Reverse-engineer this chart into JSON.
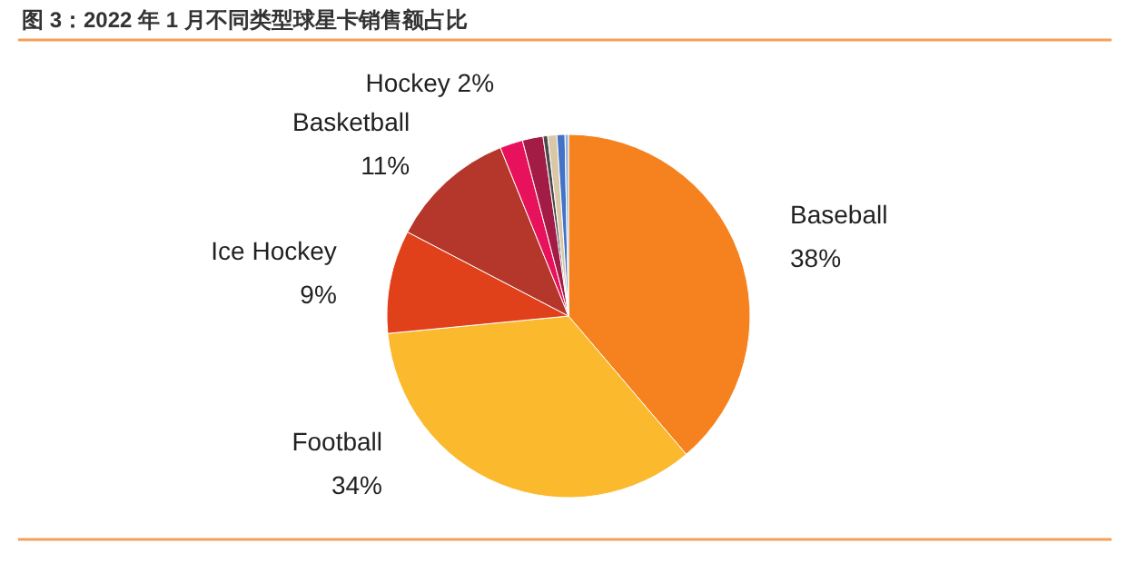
{
  "chart_data": {
    "type": "pie",
    "title": "图 3：2022 年 1 月不同类型球星卡销售额占比",
    "categories": [
      "Baseball",
      "Football",
      "Ice Hockey",
      "Basketball",
      "Hockey",
      null,
      null,
      null,
      null,
      null
    ],
    "values": [
      38,
      34,
      9,
      11,
      2,
      1.8,
      0.4,
      0.8,
      0.7,
      0.3
    ],
    "value_labels": [
      "38%",
      "34%",
      "9%",
      "11%",
      "2%",
      null,
      null,
      null,
      null,
      null
    ],
    "colors": [
      "#f5821f",
      "#fbb92d",
      "#e0401a",
      "#b5372c",
      "#e8125c",
      "#a31c45",
      "#4a4a4a",
      "#d9c8a8",
      "#4472c4",
      "#8fb4e3"
    ]
  }
}
